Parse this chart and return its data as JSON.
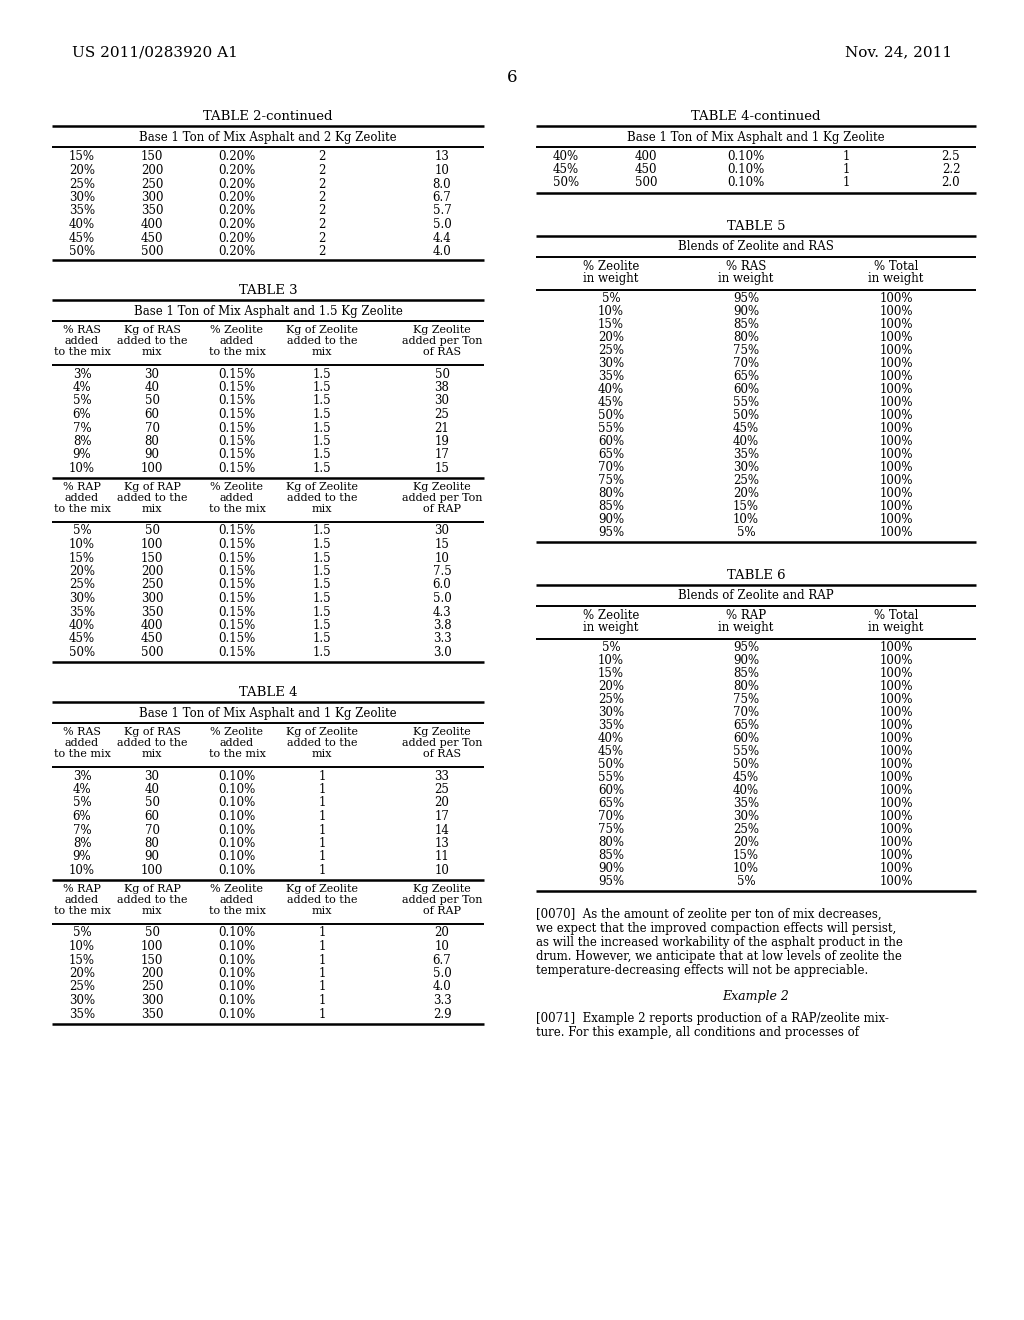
{
  "page_header_left": "US 2011/0283920 A1",
  "page_header_right": "Nov. 24, 2011",
  "page_number": "6",
  "background_color": "#ffffff",
  "table2_continued_title": "TABLE 2-continued",
  "table2_subtitle": "Base 1 Ton of Mix Asphalt and 2 Kg Zeolite",
  "table2_data": [
    [
      "15%",
      "150",
      "0.20%",
      "2",
      "13"
    ],
    [
      "20%",
      "200",
      "0.20%",
      "2",
      "10"
    ],
    [
      "25%",
      "250",
      "0.20%",
      "2",
      "8.0"
    ],
    [
      "30%",
      "300",
      "0.20%",
      "2",
      "6.7"
    ],
    [
      "35%",
      "350",
      "0.20%",
      "2",
      "5.7"
    ],
    [
      "40%",
      "400",
      "0.20%",
      "2",
      "5.0"
    ],
    [
      "45%",
      "450",
      "0.20%",
      "2",
      "4.4"
    ],
    [
      "50%",
      "500",
      "0.20%",
      "2",
      "4.0"
    ]
  ],
  "table3_title": "TABLE 3",
  "table3_subtitle": "Base 1 Ton of Mix Asphalt and 1.5 Kg Zeolite",
  "table3_header1": [
    "% RAS\nadded\nto the mix",
    "Kg of RAS\nadded to the\nmix",
    "% Zeolite\nadded\nto the mix",
    "Kg of Zeolite\nadded to the\nmix",
    "Kg Zeolite\nadded per Ton\nof RAS"
  ],
  "table3_ras_data": [
    [
      "3%",
      "30",
      "0.15%",
      "1.5",
      "50"
    ],
    [
      "4%",
      "40",
      "0.15%",
      "1.5",
      "38"
    ],
    [
      "5%",
      "50",
      "0.15%",
      "1.5",
      "30"
    ],
    [
      "6%",
      "60",
      "0.15%",
      "1.5",
      "25"
    ],
    [
      "7%",
      "70",
      "0.15%",
      "1.5",
      "21"
    ],
    [
      "8%",
      "80",
      "0.15%",
      "1.5",
      "19"
    ],
    [
      "9%",
      "90",
      "0.15%",
      "1.5",
      "17"
    ],
    [
      "10%",
      "100",
      "0.15%",
      "1.5",
      "15"
    ]
  ],
  "table3_header2": [
    "% RAP\nadded\nto the mix",
    "Kg of RAP\nadded to the\nmix",
    "% Zeolite\nadded\nto the mix",
    "Kg of Zeolite\nadded to the\nmix",
    "Kg Zeolite\nadded per Ton\nof RAP"
  ],
  "table3_rap_data": [
    [
      "5%",
      "50",
      "0.15%",
      "1.5",
      "30"
    ],
    [
      "10%",
      "100",
      "0.15%",
      "1.5",
      "15"
    ],
    [
      "15%",
      "150",
      "0.15%",
      "1.5",
      "10"
    ],
    [
      "20%",
      "200",
      "0.15%",
      "1.5",
      "7.5"
    ],
    [
      "25%",
      "250",
      "0.15%",
      "1.5",
      "6.0"
    ],
    [
      "30%",
      "300",
      "0.15%",
      "1.5",
      "5.0"
    ],
    [
      "35%",
      "350",
      "0.15%",
      "1.5",
      "4.3"
    ],
    [
      "40%",
      "400",
      "0.15%",
      "1.5",
      "3.8"
    ],
    [
      "45%",
      "450",
      "0.15%",
      "1.5",
      "3.3"
    ],
    [
      "50%",
      "500",
      "0.15%",
      "1.5",
      "3.0"
    ]
  ],
  "table4_title": "TABLE 4",
  "table4_subtitle": "Base 1 Ton of Mix Asphalt and 1 Kg Zeolite",
  "table4_header1": [
    "% RAS\nadded\nto the mix",
    "Kg of RAS\nadded to the\nmix",
    "% Zeolite\nadded\nto the mix",
    "Kg of Zeolite\nadded to the\nmix",
    "Kg Zeolite\nadded per Ton\nof RAS"
  ],
  "table4_ras_data": [
    [
      "3%",
      "30",
      "0.10%",
      "1",
      "33"
    ],
    [
      "4%",
      "40",
      "0.10%",
      "1",
      "25"
    ],
    [
      "5%",
      "50",
      "0.10%",
      "1",
      "20"
    ],
    [
      "6%",
      "60",
      "0.10%",
      "1",
      "17"
    ],
    [
      "7%",
      "70",
      "0.10%",
      "1",
      "14"
    ],
    [
      "8%",
      "80",
      "0.10%",
      "1",
      "13"
    ],
    [
      "9%",
      "90",
      "0.10%",
      "1",
      "11"
    ],
    [
      "10%",
      "100",
      "0.10%",
      "1",
      "10"
    ]
  ],
  "table4_header2": [
    "% RAP\nadded\nto the mix",
    "Kg of RAP\nadded to the\nmix",
    "% Zeolite\nadded\nto the mix",
    "Kg of Zeolite\nadded to the\nmix",
    "Kg Zeolite\nadded per Ton\nof RAP"
  ],
  "table4_rap_data": [
    [
      "5%",
      "50",
      "0.10%",
      "1",
      "20"
    ],
    [
      "10%",
      "100",
      "0.10%",
      "1",
      "10"
    ],
    [
      "15%",
      "150",
      "0.10%",
      "1",
      "6.7"
    ],
    [
      "20%",
      "200",
      "0.10%",
      "1",
      "5.0"
    ],
    [
      "25%",
      "250",
      "0.10%",
      "1",
      "4.0"
    ],
    [
      "30%",
      "300",
      "0.10%",
      "1",
      "3.3"
    ],
    [
      "35%",
      "350",
      "0.10%",
      "1",
      "2.9"
    ]
  ],
  "table4_continued_title": "TABLE 4-continued",
  "table4_continued_subtitle": "Base 1 Ton of Mix Asphalt and 1 Kg Zeolite",
  "table4_continued_data": [
    [
      "40%",
      "400",
      "0.10%",
      "1",
      "2.5"
    ],
    [
      "45%",
      "450",
      "0.10%",
      "1",
      "2.2"
    ],
    [
      "50%",
      "500",
      "0.10%",
      "1",
      "2.0"
    ]
  ],
  "table5_title": "TABLE 5",
  "table5_subtitle": "Blends of Zeolite and RAS",
  "table5_headers": [
    "% Zeolite\nin weight",
    "% RAS\nin weight",
    "% Total\nin weight"
  ],
  "table5_data": [
    [
      "5%",
      "95%",
      "100%"
    ],
    [
      "10%",
      "90%",
      "100%"
    ],
    [
      "15%",
      "85%",
      "100%"
    ],
    [
      "20%",
      "80%",
      "100%"
    ],
    [
      "25%",
      "75%",
      "100%"
    ],
    [
      "30%",
      "70%",
      "100%"
    ],
    [
      "35%",
      "65%",
      "100%"
    ],
    [
      "40%",
      "60%",
      "100%"
    ],
    [
      "45%",
      "55%",
      "100%"
    ],
    [
      "50%",
      "50%",
      "100%"
    ],
    [
      "55%",
      "45%",
      "100%"
    ],
    [
      "60%",
      "40%",
      "100%"
    ],
    [
      "65%",
      "35%",
      "100%"
    ],
    [
      "70%",
      "30%",
      "100%"
    ],
    [
      "75%",
      "25%",
      "100%"
    ],
    [
      "80%",
      "20%",
      "100%"
    ],
    [
      "85%",
      "15%",
      "100%"
    ],
    [
      "90%",
      "10%",
      "100%"
    ],
    [
      "95%",
      "5%",
      "100%"
    ]
  ],
  "table6_title": "TABLE 6",
  "table6_subtitle": "Blends of Zeolite and RAP",
  "table6_headers": [
    "% Zeolite\nin weight",
    "% RAP\nin weight",
    "% Total\nin weight"
  ],
  "table6_data": [
    [
      "5%",
      "95%",
      "100%"
    ],
    [
      "10%",
      "90%",
      "100%"
    ],
    [
      "15%",
      "85%",
      "100%"
    ],
    [
      "20%",
      "80%",
      "100%"
    ],
    [
      "25%",
      "75%",
      "100%"
    ],
    [
      "30%",
      "70%",
      "100%"
    ],
    [
      "35%",
      "65%",
      "100%"
    ],
    [
      "40%",
      "60%",
      "100%"
    ],
    [
      "45%",
      "55%",
      "100%"
    ],
    [
      "50%",
      "50%",
      "100%"
    ],
    [
      "55%",
      "45%",
      "100%"
    ],
    [
      "60%",
      "40%",
      "100%"
    ],
    [
      "65%",
      "35%",
      "100%"
    ],
    [
      "70%",
      "30%",
      "100%"
    ],
    [
      "75%",
      "25%",
      "100%"
    ],
    [
      "80%",
      "20%",
      "100%"
    ],
    [
      "85%",
      "15%",
      "100%"
    ],
    [
      "90%",
      "10%",
      "100%"
    ],
    [
      "95%",
      "5%",
      "100%"
    ]
  ],
  "para0070": "[0070]  As the amount of zeolite per ton of mix decreases, we expect that the improved compaction effects will persist, as will the increased workability of the asphalt product in the drum. However, we anticipate that at low levels of zeolite the temperature-decreasing effects will not be appreciable.",
  "example2_title": "Example 2",
  "para0071": "[0071]  Example 2 reports production of a RAP/zeolite mixture. For this example, all conditions and processes of"
}
